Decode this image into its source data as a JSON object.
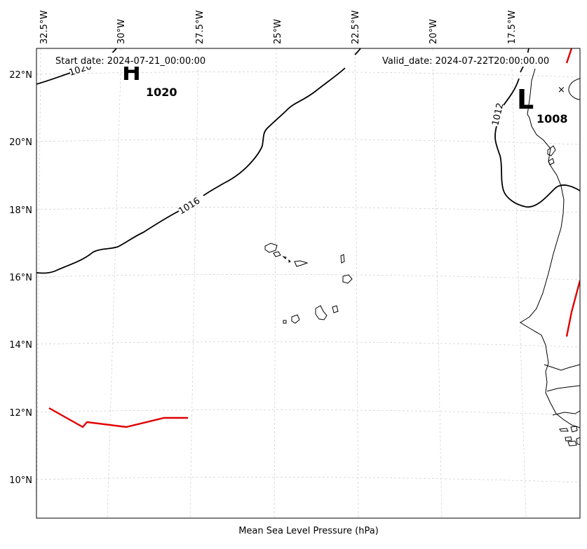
{
  "map": {
    "header": {
      "start_date": "Start date: 2024-07-21_00:00:00",
      "valid_date": "Valid_date: 2024-07-22T20:00:00.00"
    },
    "xlabel": "Mean Sea Level Pressure (hPa)",
    "lon_ticks": [
      "32.5°W",
      "30°W",
      "27.5°W",
      "25°W",
      "22.5°W",
      "20°W",
      "17.5°W"
    ],
    "lat_ticks": [
      "22°N",
      "20°N",
      "18°N",
      "16°N",
      "14°N",
      "12°N",
      "10°N"
    ],
    "contours": [
      {
        "level": "1020",
        "label": "1020"
      },
      {
        "level": "1016",
        "label": "1016"
      },
      {
        "level": "1012",
        "label": "1012"
      }
    ],
    "high": {
      "symbol": "H",
      "value": "1020"
    },
    "low": {
      "symbol": "L",
      "value": "1008",
      "center_marker": "×"
    },
    "colors": {
      "contour": "#000000",
      "front": "#e00000",
      "grid": "#cccccc",
      "coast": "#000000"
    }
  }
}
